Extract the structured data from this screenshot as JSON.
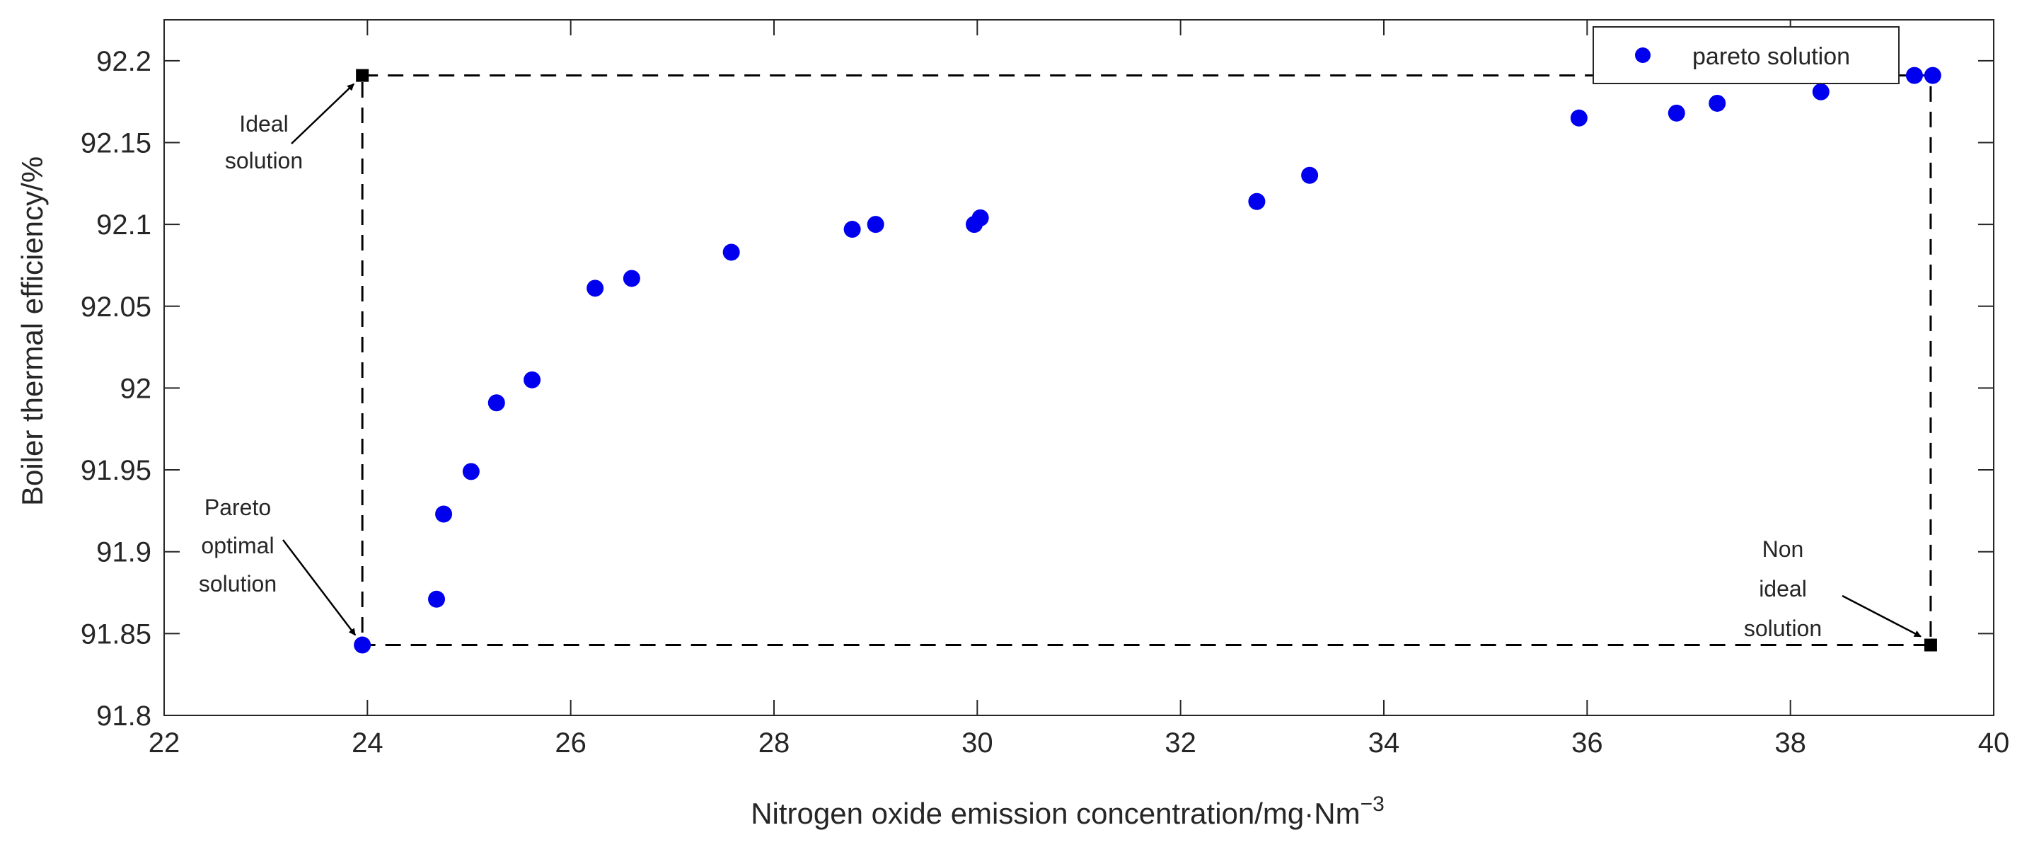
{
  "chart_data": {
    "type": "scatter",
    "xlabel": "Nitrogen oxide emission concentration/mg·Nm",
    "xlabel_sup": "−3",
    "ylabel": "Boiler thermal efficiency/%",
    "xlim": [
      22,
      40
    ],
    "ylim": [
      91.8,
      92.225
    ],
    "x_ticks": [
      22,
      24,
      26,
      28,
      30,
      32,
      34,
      36,
      38,
      40
    ],
    "x_tick_labels": [
      "22",
      "24",
      "26",
      "28",
      "30",
      "32",
      "34",
      "36",
      "38",
      "40"
    ],
    "y_ticks": [
      91.8,
      91.85,
      91.9,
      91.95,
      92.0,
      92.05,
      92.1,
      92.15,
      92.2
    ],
    "y_tick_labels": [
      "91.8",
      "91.85",
      "91.9",
      "91.95",
      "92",
      "92.05",
      "92.1",
      "92.15",
      "92.2"
    ],
    "grid": false,
    "legend_position": "top-right",
    "series": [
      {
        "name": "pareto solution",
        "color": "#0000ee",
        "marker": "circle",
        "points": [
          [
            23.95,
            91.843
          ],
          [
            24.68,
            91.871
          ],
          [
            24.75,
            91.923
          ],
          [
            25.02,
            91.949
          ],
          [
            25.27,
            91.991
          ],
          [
            25.62,
            92.005
          ],
          [
            26.24,
            92.061
          ],
          [
            26.6,
            92.067
          ],
          [
            27.58,
            92.083
          ],
          [
            28.77,
            92.097
          ],
          [
            29.0,
            92.1
          ],
          [
            29.97,
            92.1
          ],
          [
            30.03,
            92.104
          ],
          [
            32.75,
            92.114
          ],
          [
            33.27,
            92.13
          ],
          [
            35.92,
            92.165
          ],
          [
            36.88,
            92.168
          ],
          [
            37.28,
            92.174
          ],
          [
            38.3,
            92.181
          ],
          [
            39.22,
            92.191
          ],
          [
            39.4,
            92.191
          ]
        ]
      }
    ],
    "reference_rectangle": {
      "x_min": 23.95,
      "x_max": 39.38,
      "y_min": 91.843,
      "y_max": 92.191,
      "style": "dashed",
      "color": "#000000"
    },
    "special_points": [
      {
        "name": "ideal",
        "x": 23.95,
        "y": 92.191,
        "marker": "square",
        "color": "#000000"
      },
      {
        "name": "non-ideal",
        "x": 39.38,
        "y": 91.843,
        "marker": "square",
        "color": "#000000"
      }
    ],
    "annotations": [
      {
        "name": "ideal-solution",
        "lines": [
          "Ideal",
          "solution"
        ],
        "target": [
          23.95,
          92.191
        ]
      },
      {
        "name": "pareto-optimal-solution",
        "lines": [
          "Pareto",
          "optimal",
          "solution"
        ],
        "target": [
          23.95,
          91.843
        ]
      },
      {
        "name": "non-ideal-solution",
        "lines": [
          "Non",
          "ideal",
          "solution"
        ],
        "target": [
          39.38,
          91.843
        ]
      }
    ]
  }
}
